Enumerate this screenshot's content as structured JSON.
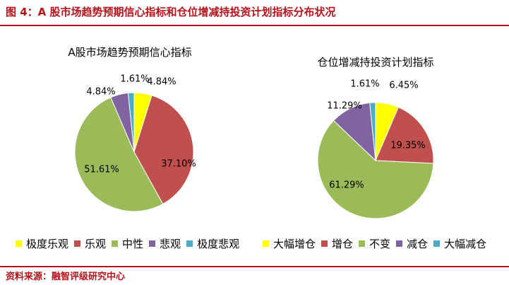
{
  "figure_title": "图 4：A 股市场趋势预期信心指标和仓位增减持投资计划指标分布状况",
  "source": "资料来源：融智评级研究中心",
  "chart_data": [
    {
      "type": "pie",
      "title": "A股市场趋势预期信心指标",
      "categories": [
        "极度乐观",
        "乐观",
        "中性",
        "悲观",
        "极度悲观"
      ],
      "values": [
        4.84,
        37.1,
        51.61,
        4.84,
        1.61
      ],
      "labels": [
        "4.84%",
        "37.10%",
        "51.61%",
        "4.84%",
        "1.61%"
      ],
      "colors": [
        "#ffff00",
        "#c0504d",
        "#9bbb59",
        "#8064a2",
        "#4bacc6"
      ],
      "legend": "bottom"
    },
    {
      "type": "pie",
      "title": "仓位增减持投资计划指标",
      "categories": [
        "大幅增仓",
        "增仓",
        "不变",
        "减仓",
        "大幅减仓"
      ],
      "values": [
        6.45,
        19.35,
        61.29,
        11.29,
        1.61
      ],
      "labels": [
        "6.45%",
        "19.35%",
        "61.29%",
        "11.29%",
        "1.61%"
      ],
      "colors": [
        "#ffff00",
        "#c0504d",
        "#9bbb59",
        "#8064a2",
        "#4bacc6"
      ],
      "legend": "bottom"
    }
  ]
}
